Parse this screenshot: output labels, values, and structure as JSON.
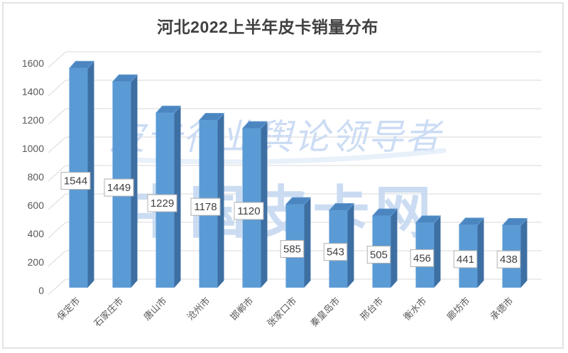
{
  "page": {
    "background": "#ffffff",
    "border_color": "#e3e3e3"
  },
  "chart_data": {
    "type": "bar",
    "style": "3d-column",
    "title": "河北2022上半年皮卡销量分布",
    "categories": [
      "保定市",
      "石家庄市",
      "唐山市",
      "沧州市",
      "邯郸市",
      "张家口市",
      "秦皇岛市",
      "邢台市",
      "衡水市",
      "廊坊市",
      "承德市"
    ],
    "values": [
      1544,
      1449,
      1229,
      1178,
      1120,
      585,
      543,
      505,
      456,
      441,
      438
    ],
    "xlabel": "",
    "ylabel": "",
    "ylim": [
      0,
      1600
    ],
    "yticks": [
      0,
      200,
      400,
      600,
      800,
      1000,
      1200,
      1400,
      1600
    ],
    "grid": true,
    "legend": "none",
    "data_label_position": "center",
    "colors": {
      "bar_front": "#5b9bd5",
      "bar_side": "#3e6fa3",
      "bar_top": "#4b86c1",
      "bar_top_edge": "#6fa3d6",
      "gridline": "#d9d9d9",
      "axis_text": "#595959",
      "title_text": "#404040",
      "value_text": "#404040",
      "label_box_bg": "#ffffff",
      "label_box_border": "#b0b0b0"
    },
    "watermarks": [
      {
        "text": "皮卡行业舆论领导者",
        "color": "#ccdcf4"
      },
      {
        "text": "中国皮卡网",
        "color": "#c6d9f1"
      }
    ]
  }
}
